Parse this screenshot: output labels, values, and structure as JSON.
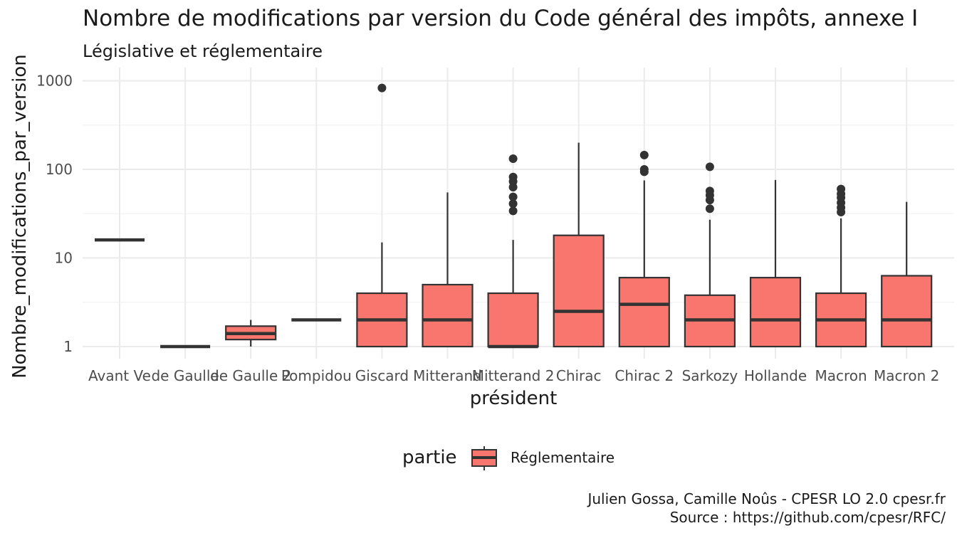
{
  "chart_data": {
    "type": "boxplot",
    "title": "Nombre de modifications par version du Code général des impôts, annexe I",
    "subtitle": "Législative et réglementaire",
    "xlabel": "président",
    "ylabel": "Nombre_modifications_par_version",
    "y_scale": "log10",
    "ylim": [
      0.8,
      1100
    ],
    "y_ticks": [
      1,
      10,
      100,
      1000
    ],
    "y_tick_labels": [
      "1",
      "10",
      "100",
      "1000"
    ],
    "grid": true,
    "legend": {
      "title": "partie",
      "position": "bottom",
      "entries": [
        "Réglementaire"
      ]
    },
    "fill_color": "#F8766D",
    "categories": [
      "Avant Ve",
      "de Gaulle",
      "de Gaulle 2",
      "Pompidou",
      "Giscard",
      "Mitterand",
      "Mitterand 2",
      "Chirac",
      "Chirac 2",
      "Sarkozy",
      "Hollande",
      "Macron",
      "Macron 2"
    ],
    "boxes": [
      {
        "category": "Avant Ve",
        "lower_whisker": 16,
        "q1": 16,
        "median": 16,
        "q3": 16,
        "upper_whisker": 16,
        "outliers": []
      },
      {
        "category": "de Gaulle",
        "lower_whisker": 1,
        "q1": 1,
        "median": 1,
        "q3": 1,
        "upper_whisker": 1,
        "outliers": []
      },
      {
        "category": "de Gaulle 2",
        "lower_whisker": 1,
        "q1": 1.2,
        "median": 1.4,
        "q3": 1.7,
        "upper_whisker": 2,
        "outliers": []
      },
      {
        "category": "Pompidou",
        "lower_whisker": 2,
        "q1": 2,
        "median": 2,
        "q3": 2,
        "upper_whisker": 2,
        "outliers": []
      },
      {
        "category": "Giscard",
        "lower_whisker": 1,
        "q1": 1,
        "median": 2,
        "q3": 4,
        "upper_whisker": 15,
        "outliers": [
          830
        ]
      },
      {
        "category": "Mitterand",
        "lower_whisker": 1,
        "q1": 1,
        "median": 2,
        "q3": 5,
        "upper_whisker": 55,
        "outliers": []
      },
      {
        "category": "Mitterand 2",
        "lower_whisker": 1,
        "q1": 1,
        "median": 1,
        "q3": 4,
        "upper_whisker": 16,
        "outliers": [
          34,
          41,
          49,
          63,
          73,
          82,
          132
        ]
      },
      {
        "category": "Chirac",
        "lower_whisker": 1,
        "q1": 1,
        "median": 2.5,
        "q3": 18,
        "upper_whisker": 200,
        "outliers": []
      },
      {
        "category": "Chirac 2",
        "lower_whisker": 1,
        "q1": 1,
        "median": 3,
        "q3": 6,
        "upper_whisker": 75,
        "outliers": [
          94,
          100,
          145
        ]
      },
      {
        "category": "Sarkozy",
        "lower_whisker": 1,
        "q1": 1,
        "median": 2,
        "q3": 3.8,
        "upper_whisker": 27,
        "outliers": [
          36,
          45,
          51,
          57,
          107
        ]
      },
      {
        "category": "Hollande",
        "lower_whisker": 1,
        "q1": 1,
        "median": 2,
        "q3": 6,
        "upper_whisker": 76,
        "outliers": []
      },
      {
        "category": "Macron",
        "lower_whisker": 1,
        "q1": 1,
        "median": 2,
        "q3": 4,
        "upper_whisker": 28,
        "outliers": [
          33,
          37,
          42,
          48,
          53,
          60
        ]
      },
      {
        "category": "Macron 2",
        "lower_whisker": 1,
        "q1": 1,
        "median": 2,
        "q3": 6.3,
        "upper_whisker": 43,
        "outliers": []
      }
    ]
  },
  "caption": {
    "line1": "Julien Gossa, Camille Noûs - CPESR LO 2.0 cpesr.fr",
    "line2": "Source : https://github.com/cpesr/RFC/"
  }
}
